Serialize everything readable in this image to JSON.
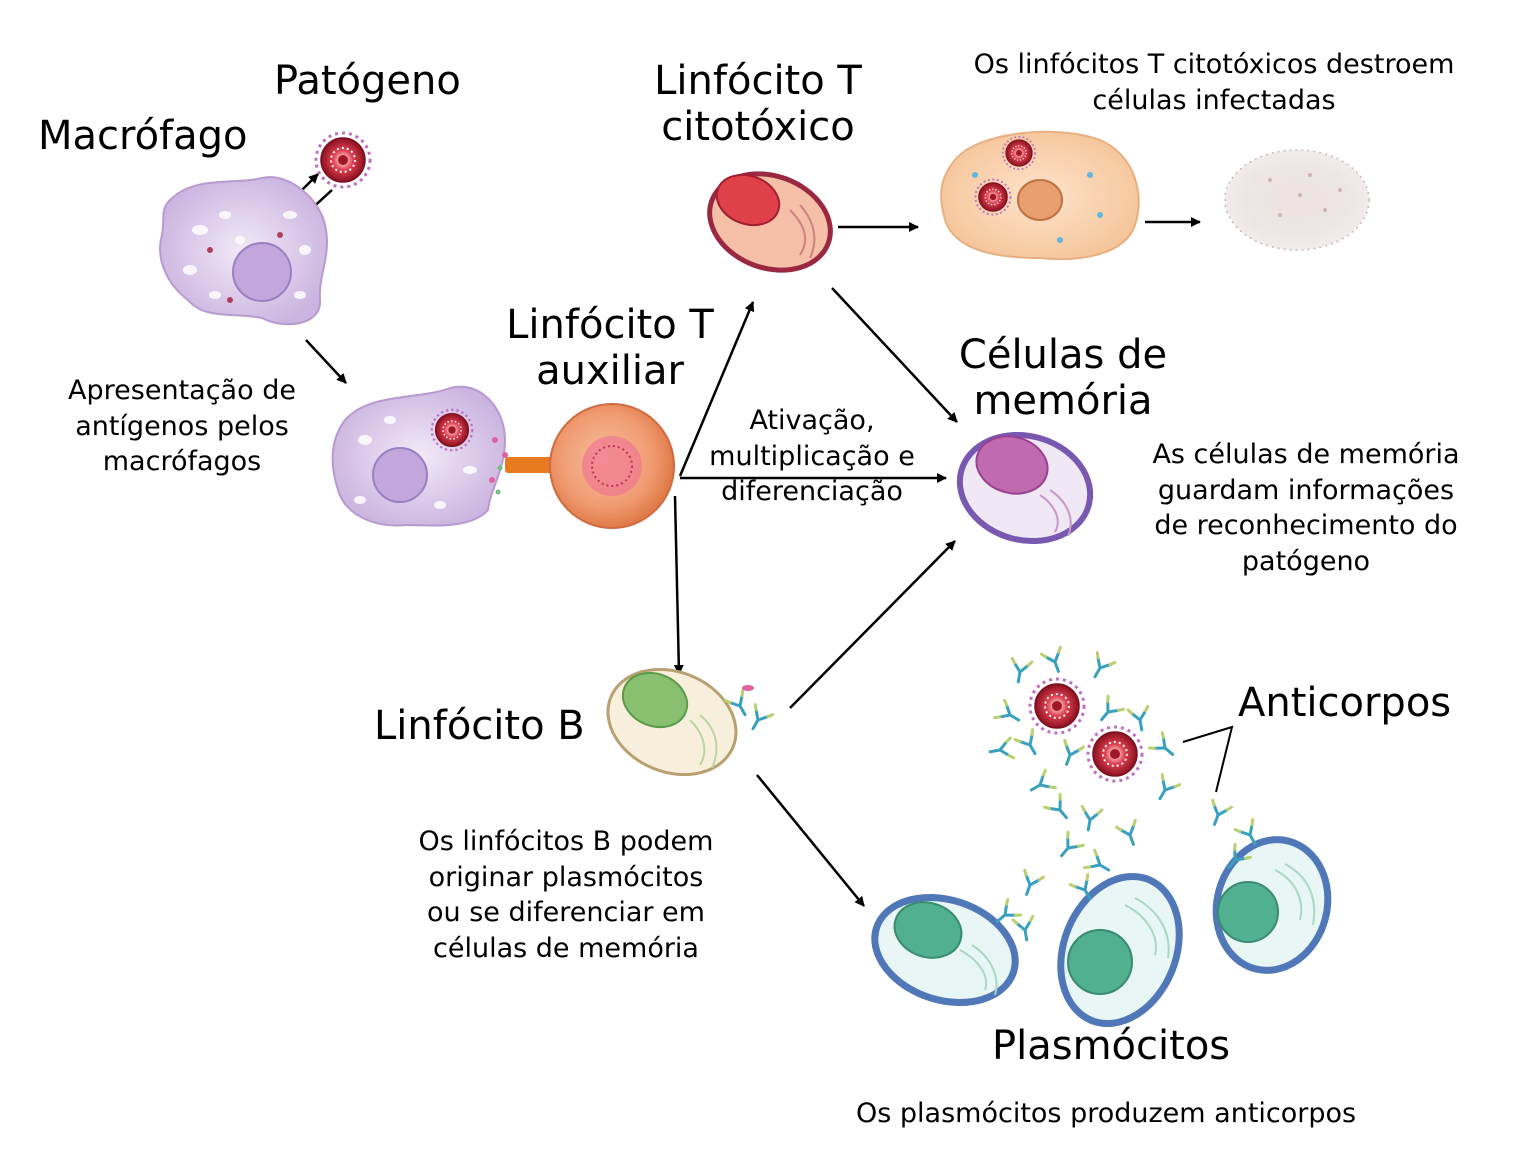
{
  "labels": {
    "patogeno": "Patógeno",
    "macrofago": "Macrófago",
    "linfocito_t_citotoxico": "Linfócito T\ncitotóxico",
    "citotoxico_desc": "Os linfócitos T citotóxicos destroem\ncélulas infectadas",
    "linfocito_t_auxiliar": "Linfócito T\nauxiliar",
    "apresentacao": "Apresentação de\nantígenos pelos\nmacrófagos",
    "ativacao": "Ativação,\nmultiplicação e\ndiferenciação",
    "celulas_memoria": "Células de\nmemória",
    "memoria_desc": "As células de memória\nguardam informações\nde reconhecimento do\npatógeno",
    "linfocito_b": "Linfócito B",
    "anticorpos": "Anticorpos",
    "linfocito_b_desc": "Os linfócitos B podem\noriginar plasmócitos\nou se diferenciar em\ncélulas de memória",
    "plasmocitos": "Plasmócitos",
    "plasmocitos_desc": "Os plasmócitos produzem anticorpos"
  },
  "colors": {
    "macrophage": "#d9c8ea",
    "pathogen": "#b0203a",
    "t_cytotoxic": "#e0525a",
    "t_helper": "#f0a070",
    "memory_cell": "#c070b0",
    "b_cell": "#88c070",
    "plasma_cell": "#50b090",
    "antibody": "#3aa0c0",
    "arrow": "#000000"
  }
}
